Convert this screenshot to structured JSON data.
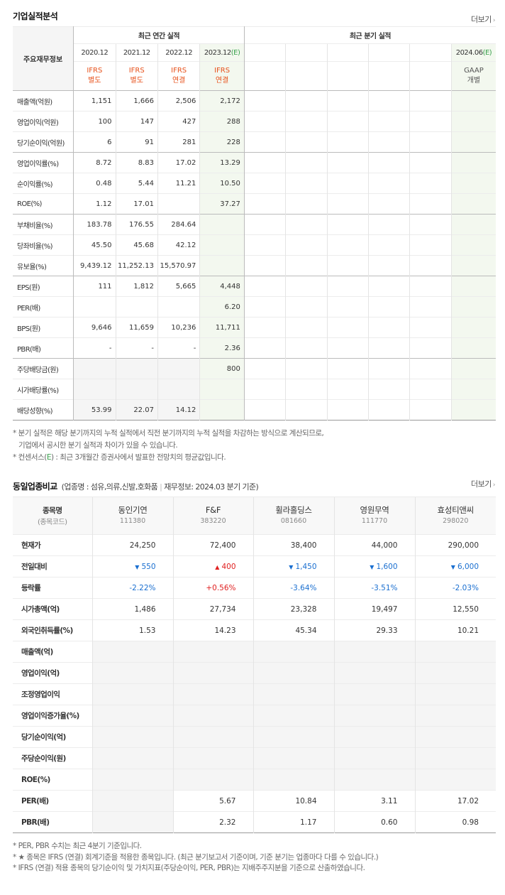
{
  "section1": {
    "title": "기업실적분석",
    "more": "더보기",
    "row_header": "주요재무정보",
    "annual_header": "최근 연간 실적",
    "quarter_header": "최근 분기 실적",
    "annual_periods": [
      {
        "date": "2020.12",
        "est": "",
        "std1": "IFRS",
        "std2": "별도"
      },
      {
        "date": "2021.12",
        "est": "",
        "std1": "IFRS",
        "std2": "별도"
      },
      {
        "date": "2022.12",
        "est": "",
        "std1": "IFRS",
        "std2": "연결"
      },
      {
        "date": "2023.12",
        "est": "(E)",
        "std1": "IFRS",
        "std2": "연결"
      }
    ],
    "quarter_last": {
      "date": "2024.06",
      "est": "(E)",
      "std1": "GAAP",
      "std2": "개별"
    },
    "rows": [
      {
        "label": "매출액(억원)",
        "values": [
          "1,151",
          "1,666",
          "2,506",
          "2,172"
        ]
      },
      {
        "label": "영업이익(억원)",
        "values": [
          "100",
          "147",
          "427",
          "288"
        ]
      },
      {
        "label": "당기순이익(억원)",
        "values": [
          "6",
          "91",
          "281",
          "228"
        ]
      },
      {
        "label": "영업이익률(%)",
        "values": [
          "8.72",
          "8.83",
          "17.02",
          "13.29"
        ]
      },
      {
        "label": "순이익률(%)",
        "values": [
          "0.48",
          "5.44",
          "11.21",
          "10.50"
        ]
      },
      {
        "label": "ROE(%)",
        "values": [
          "1.12",
          "17.01",
          "",
          "37.27"
        ]
      },
      {
        "label": "부채비율(%)",
        "values": [
          "183.78",
          "176.55",
          "284.64",
          ""
        ]
      },
      {
        "label": "당좌비율(%)",
        "values": [
          "45.50",
          "45.68",
          "42.12",
          ""
        ]
      },
      {
        "label": "유보율(%)",
        "values": [
          "9,439.12",
          "11,252.13",
          "15,570.97",
          ""
        ]
      },
      {
        "label": "EPS(원)",
        "values": [
          "111",
          "1,812",
          "5,665",
          "4,448"
        ]
      },
      {
        "label": "PER(배)",
        "values": [
          "",
          "",
          "",
          "6.20"
        ]
      },
      {
        "label": "BPS(원)",
        "values": [
          "9,646",
          "11,659",
          "10,236",
          "11,711"
        ]
      },
      {
        "label": "PBR(배)",
        "values": [
          "-",
          "-",
          "-",
          "2.36"
        ]
      },
      {
        "label": "주당배당금(원)",
        "values": [
          "",
          "",
          "",
          "800"
        ]
      },
      {
        "label": "시가배당률(%)",
        "values": [
          "",
          "",
          "",
          ""
        ]
      },
      {
        "label": "배당성향(%)",
        "values": [
          "53.99",
          "22.07",
          "14.12",
          ""
        ]
      }
    ],
    "notes": [
      "* 분기 실적은 해당 분기까지의 누적 실적에서 직전 분기까지의 누적 실적을 차감하는 방식으로 계산되므로,",
      "기업에서 공시한 분기 실적과 차이가 있을 수 있습니다."
    ],
    "note_consensus_pre": "* 컨센서스(",
    "note_consensus_e": "E",
    "note_consensus_post": ") : 최근 3개월간 증권사에서 발표한 전망치의 평균값입니다."
  },
  "section2": {
    "title": "동일업종비교",
    "desc_pre": "(업종명 : 섬유,의류,신발,호화품",
    "desc_post": "재무정보: 2024.03 분기 기준)",
    "more": "더보기",
    "first_header": {
      "name": "종목명",
      "code": "(종목코드)"
    },
    "companies": [
      {
        "name": "동인기연",
        "code": "111380"
      },
      {
        "name": "F&F",
        "code": "383220"
      },
      {
        "name": "휠라홀딩스",
        "code": "081660"
      },
      {
        "name": "영원무역",
        "code": "111770"
      },
      {
        "name": "효성티앤씨",
        "code": "298020"
      }
    ],
    "rows": [
      {
        "label": "현재가",
        "values": [
          "24,250",
          "72,400",
          "38,400",
          "44,000",
          "290,000"
        ]
      },
      {
        "label": "전일대비",
        "values": [
          "550",
          "400",
          "1,450",
          "1,600",
          "6,000"
        ],
        "dirs": [
          "down",
          "up",
          "down",
          "down",
          "down"
        ]
      },
      {
        "label": "등락률",
        "values": [
          "-2.22%",
          "+0.56%",
          "-3.64%",
          "-3.51%",
          "-2.03%"
        ],
        "dirs": [
          "down",
          "up",
          "down",
          "down",
          "down"
        ]
      },
      {
        "label": "시가총액(억)",
        "values": [
          "1,486",
          "27,734",
          "23,328",
          "19,497",
          "12,550"
        ]
      },
      {
        "label": "외국인취득률(%)",
        "values": [
          "1.53",
          "14.23",
          "45.34",
          "29.33",
          "10.21"
        ]
      },
      {
        "label": "매출액(억)",
        "values": [
          "",
          "",
          "",
          "",
          ""
        ]
      },
      {
        "label": "영업이익(억)",
        "values": [
          "",
          "",
          "",
          "",
          ""
        ]
      },
      {
        "label": "조정영업이익",
        "values": [
          "",
          "",
          "",
          "",
          ""
        ]
      },
      {
        "label": "영업이익증가율(%)",
        "values": [
          "",
          "",
          "",
          "",
          ""
        ]
      },
      {
        "label": "당기순이익(억)",
        "values": [
          "",
          "",
          "",
          "",
          ""
        ]
      },
      {
        "label": "주당순이익(원)",
        "values": [
          "",
          "",
          "",
          "",
          ""
        ]
      },
      {
        "label": "ROE(%)",
        "values": [
          "",
          "",
          "",
          "",
          ""
        ]
      },
      {
        "label": "PER(배)",
        "values": [
          "",
          "5.67",
          "10.84",
          "3.11",
          "17.02"
        ]
      },
      {
        "label": "PBR(배)",
        "values": [
          "",
          "2.32",
          "1.17",
          "0.60",
          "0.98"
        ]
      }
    ],
    "notes": [
      "* PER, PBR 수치는 최근 4분기 기준입니다.",
      "* ★ 종목은 IFRS (연결) 회계기준을 적용한 종목입니다. (최근 분기보고서 기준이며, 기준 분기는 업종마다 다를 수 있습니다.)",
      "* IFRS (연결) 적용 종목의 당기순이익 및 가치지표(주당순이익, PER, PBR)는 지배주주지분을 기준으로 산출하였습니다."
    ]
  }
}
